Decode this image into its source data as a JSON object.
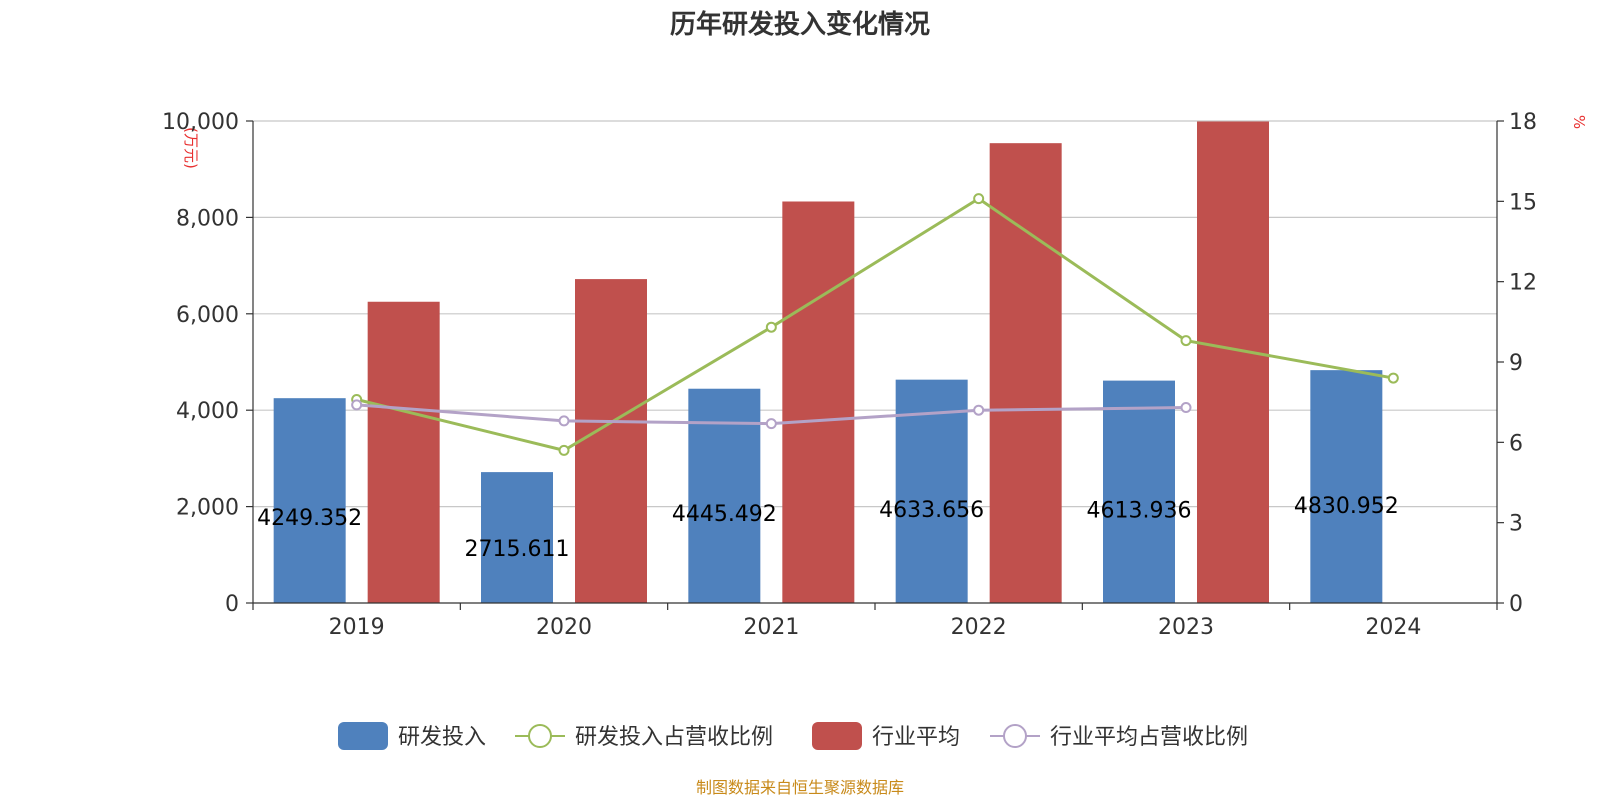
{
  "chart_data": {
    "type": "bar",
    "title": "历年研发投入变化情况",
    "categories": [
      "2019",
      "2020",
      "2021",
      "2022",
      "2023",
      "2024"
    ],
    "left_axis": {
      "unit": "(万元)",
      "ylim": [
        0,
        10000
      ],
      "ticks": [
        "0",
        "2,000",
        "4,000",
        "6,000",
        "8,000",
        "10,000"
      ],
      "tick_values": [
        0,
        2000,
        4000,
        6000,
        8000,
        10000
      ]
    },
    "right_axis": {
      "unit": "%",
      "ylim": [
        0,
        18
      ],
      "ticks": [
        "0",
        "3",
        "6",
        "9",
        "12",
        "15",
        "18"
      ],
      "tick_values": [
        0,
        3,
        6,
        9,
        12,
        15,
        18
      ]
    },
    "grid": true,
    "legend_position": "bottom",
    "series": [
      {
        "name": "研发投入",
        "type": "bar",
        "axis": "left",
        "color": "#4f81bd",
        "values": [
          4249.352,
          2715.611,
          4445.492,
          4633.656,
          4613.936,
          4830.952
        ],
        "labels": [
          "4249.352",
          "2715.611",
          "4445.492",
          "4633.656",
          "4613.936",
          "4830.952"
        ]
      },
      {
        "name": "研发投入占营收比例",
        "type": "line",
        "axis": "right",
        "color": "#9bbb59",
        "values": [
          7.6,
          5.7,
          10.3,
          15.1,
          9.8,
          8.4
        ]
      },
      {
        "name": "行业平均",
        "type": "bar",
        "axis": "left",
        "color": "#c0504d",
        "values": [
          6250,
          6720,
          8330,
          9540,
          9990,
          null
        ]
      },
      {
        "name": "行业平均占营收比例",
        "type": "line",
        "axis": "right",
        "color": "#b3a2c7",
        "values": [
          7.4,
          6.8,
          6.7,
          7.2,
          7.3,
          null
        ]
      }
    ]
  },
  "footer": {
    "source": "制图数据来自恒生聚源数据库"
  }
}
